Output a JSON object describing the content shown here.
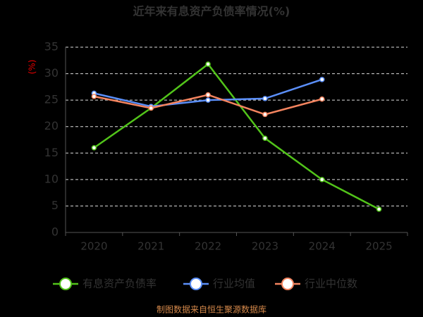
{
  "chart_data": {
    "type": "line",
    "title": "近年来有息资产负债率情况(%)",
    "y_label": "(%)",
    "categories": [
      "2020",
      "2021",
      "2022",
      "2023",
      "2024",
      "2025"
    ],
    "series": [
      {
        "name": "有息资产负债率",
        "color": "#52c41a",
        "values": [
          16.0,
          23.5,
          31.8,
          17.8,
          10.0,
          4.4
        ]
      },
      {
        "name": "行业均值",
        "color": "#5b8ff9",
        "values": [
          26.3,
          23.8,
          25.0,
          25.3,
          28.9,
          null
        ]
      },
      {
        "name": "行业中位数",
        "color": "#f4845f",
        "values": [
          25.7,
          23.5,
          26.0,
          22.3,
          25.2,
          null
        ]
      }
    ],
    "ylim": [
      0,
      35
    ],
    "yticks": [
      0,
      5,
      10,
      15,
      20,
      25,
      30,
      35
    ],
    "grid": true,
    "source": "制图数据来自恒生聚源数据库"
  }
}
